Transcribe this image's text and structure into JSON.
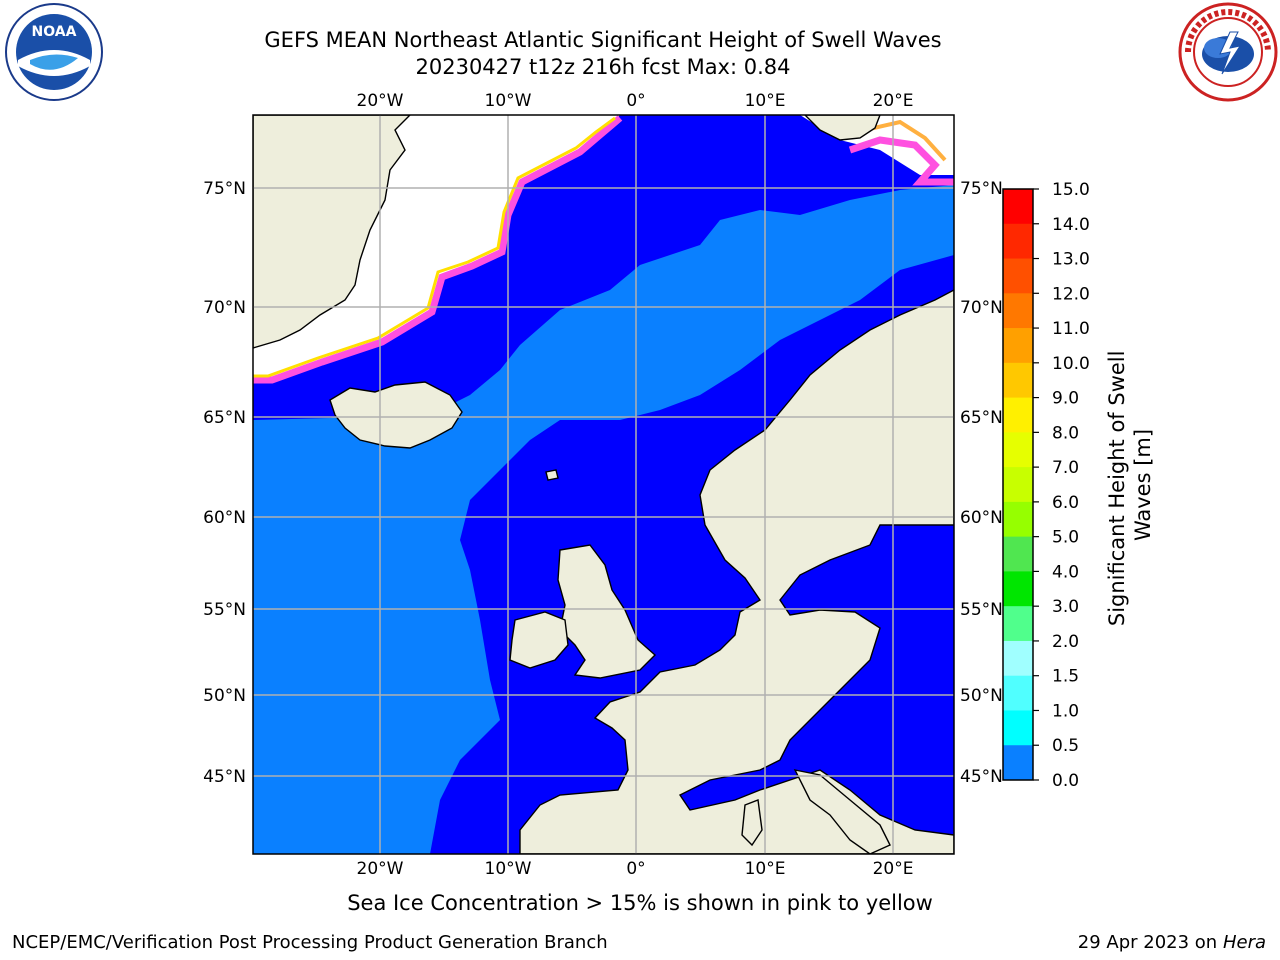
{
  "header": {
    "title_line1": "GEFS MEAN Northeast Atlantic Significant Height of Swell Waves",
    "title_line2": "20230427 t12z 216h fcst   Max: 0.84"
  },
  "logos": {
    "left": "NOAA",
    "left_ring_text": "NATIONAL OCEANIC AND ATMOSPHERIC ADMINISTRATION · U.S. DEPARTMENT OF COMMERCE",
    "right_ring_text": "NATIONAL WEATHER SERVICE"
  },
  "map": {
    "lon_ticks": [
      "20°W",
      "10°W",
      "0°",
      "10°E",
      "20°E"
    ],
    "lat_ticks": [
      "75°N",
      "70°N",
      "65°N",
      "60°N",
      "55°N",
      "50°N",
      "45°N"
    ],
    "colors": {
      "land": "#eeeedc",
      "ice_free": "#ffffff",
      "ocean_low": "#0000ff",
      "ocean_mid": "#0a80ff",
      "ice_pink": "#ff50e0",
      "ice_yellow": "#ffe000",
      "grid": "#b0b0b0"
    }
  },
  "colorbar": {
    "label": "Significant Height of Swell Waves [m]",
    "ticks": [
      "15.0",
      "14.0",
      "13.0",
      "12.0",
      "11.0",
      "10.0",
      "9.0",
      "8.0",
      "7.0",
      "6.0",
      "5.0",
      "4.0",
      "3.0",
      "2.0",
      "1.5",
      "1.0",
      "0.5",
      "0.0"
    ],
    "colors": [
      "#ff0000",
      "#ff2800",
      "#ff5000",
      "#ff7800",
      "#ffa000",
      "#ffc800",
      "#fff000",
      "#e6ff00",
      "#c8ff00",
      "#96ff00",
      "#50e650",
      "#00e600",
      "#50ff8c",
      "#a0ffff",
      "#50ffff",
      "#00ffff",
      "#0a80ff",
      "#0000ff"
    ]
  },
  "footer": {
    "note": "Sea Ice Concentration > 15% is shown in pink to yellow",
    "credit": "NCEP/EMC/Verification Post Processing Product Generation Branch",
    "date": "29 Apr 2023 on",
    "host": "Hera"
  }
}
